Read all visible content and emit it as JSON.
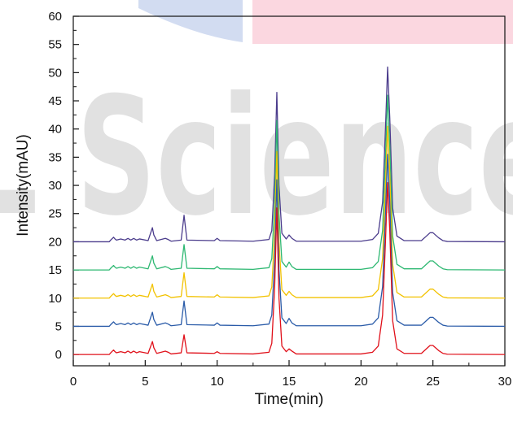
{
  "chart_data": {
    "type": "line",
    "title": "",
    "xlabel": "Time(min)",
    "ylabel": "Intensity(mAU)",
    "xlim": [
      0,
      30
    ],
    "ylim": [
      -2,
      60
    ],
    "xticks": [
      0,
      5,
      10,
      15,
      20,
      25,
      30
    ],
    "yticks": [
      0,
      5,
      10,
      15,
      20,
      25,
      30,
      35,
      40,
      45,
      50,
      55,
      60
    ],
    "grid": false,
    "legend": "none",
    "series": [
      {
        "color": "#e0101a",
        "baseline": 0,
        "x": [
          0.0,
          2.5,
          2.6,
          2.8,
          2.9,
          3.0,
          3.3,
          3.6,
          3.8,
          4.0,
          4.2,
          4.4,
          4.6,
          5.2,
          5.5,
          5.6,
          5.8,
          6.4,
          6.6,
          6.8,
          7.5,
          7.7,
          7.9,
          9.8,
          10.0,
          10.2,
          12.5,
          13.6,
          13.8,
          14.0,
          14.15,
          14.3,
          14.5,
          14.8,
          15.0,
          15.2,
          15.5,
          20.0,
          20.8,
          21.2,
          21.5,
          21.7,
          21.85,
          22.0,
          22.2,
          22.5,
          23.0,
          24.2,
          24.5,
          24.8,
          25.0,
          25.4,
          25.7,
          26.0,
          30.0
        ],
        "y": [
          0,
          0,
          0.3,
          0.8,
          0.5,
          0.3,
          0.5,
          0.3,
          0.6,
          0.3,
          0.6,
          0.3,
          0.5,
          0.2,
          2.3,
          1.2,
          0.2,
          0.6,
          0.4,
          0.1,
          0.3,
          3.5,
          0.3,
          0.2,
          0.5,
          0.2,
          0.1,
          0.4,
          2.0,
          12.0,
          26.0,
          10.0,
          1.5,
          0.5,
          1.0,
          0.6,
          0.1,
          0.1,
          0.4,
          1.5,
          7.0,
          20.0,
          30.5,
          22.0,
          6.0,
          1.0,
          0.2,
          0.2,
          0.9,
          1.6,
          1.6,
          0.7,
          0.2,
          0.05,
          0
        ]
      },
      {
        "color": "#2a5ba8",
        "baseline": 5,
        "x": [
          0.0,
          2.5,
          2.6,
          2.8,
          2.9,
          3.0,
          3.3,
          3.6,
          3.8,
          4.0,
          4.2,
          4.4,
          4.6,
          5.2,
          5.5,
          5.6,
          5.8,
          6.4,
          6.6,
          6.8,
          7.5,
          7.7,
          7.9,
          9.8,
          10.0,
          10.2,
          12.5,
          13.6,
          13.8,
          14.0,
          14.15,
          14.3,
          14.5,
          14.8,
          15.0,
          15.2,
          15.5,
          20.0,
          20.8,
          21.2,
          21.5,
          21.7,
          21.85,
          22.0,
          22.2,
          22.5,
          23.0,
          24.2,
          24.5,
          24.8,
          25.0,
          25.4,
          25.7,
          26.0,
          30.0
        ],
        "y": [
          5,
          5,
          5.3,
          5.8,
          5.5,
          5.3,
          5.5,
          5.3,
          5.6,
          5.3,
          5.6,
          5.3,
          5.5,
          5.2,
          7.5,
          6.2,
          5.2,
          5.6,
          5.4,
          5.1,
          5.3,
          9.5,
          5.3,
          5.2,
          5.6,
          5.2,
          5.1,
          5.4,
          7.0,
          17.0,
          31.0,
          15.0,
          6.5,
          5.5,
          6.4,
          5.6,
          5.1,
          5.1,
          5.4,
          6.5,
          12.0,
          25.0,
          35.5,
          27.0,
          11.0,
          6.0,
          5.2,
          5.2,
          5.9,
          6.6,
          6.6,
          5.7,
          5.2,
          5.05,
          5
        ]
      },
      {
        "color": "#f2c200",
        "baseline": 10,
        "x": [
          0.0,
          2.5,
          2.6,
          2.8,
          2.9,
          3.0,
          3.3,
          3.6,
          3.8,
          4.0,
          4.2,
          4.4,
          4.6,
          5.2,
          5.5,
          5.6,
          5.8,
          6.4,
          6.6,
          6.8,
          7.5,
          7.7,
          7.9,
          9.8,
          10.0,
          10.2,
          12.5,
          13.6,
          13.8,
          14.0,
          14.15,
          14.3,
          14.5,
          14.8,
          15.0,
          15.2,
          15.5,
          20.0,
          20.8,
          21.2,
          21.5,
          21.7,
          21.85,
          22.0,
          22.2,
          22.5,
          23.0,
          24.2,
          24.5,
          24.8,
          25.0,
          25.4,
          25.7,
          26.0,
          30.0
        ],
        "y": [
          10,
          10,
          10.3,
          10.8,
          10.5,
          10.3,
          10.5,
          10.3,
          10.6,
          10.3,
          10.6,
          10.3,
          10.5,
          10.2,
          12.5,
          11.2,
          10.2,
          10.6,
          10.4,
          10.1,
          10.3,
          14.5,
          10.3,
          10.2,
          10.6,
          10.2,
          10.1,
          10.4,
          12.0,
          22.0,
          36.0,
          20.0,
          11.5,
          10.5,
          11.2,
          10.6,
          10.1,
          10.1,
          10.4,
          11.5,
          17.0,
          30.0,
          40.5,
          32.0,
          16.0,
          11.0,
          10.2,
          10.2,
          10.9,
          11.6,
          11.6,
          10.7,
          10.2,
          10.05,
          10
        ]
      },
      {
        "color": "#2eb872",
        "baseline": 15,
        "x": [
          0.0,
          2.5,
          2.6,
          2.8,
          2.9,
          3.0,
          3.3,
          3.6,
          3.8,
          4.0,
          4.2,
          4.4,
          4.6,
          5.2,
          5.5,
          5.6,
          5.8,
          6.4,
          6.6,
          6.8,
          7.5,
          7.7,
          7.9,
          9.8,
          10.0,
          10.2,
          12.5,
          13.6,
          13.8,
          14.0,
          14.15,
          14.3,
          14.5,
          14.8,
          15.0,
          15.2,
          15.5,
          20.0,
          20.8,
          21.2,
          21.5,
          21.7,
          21.85,
          22.0,
          22.2,
          22.5,
          23.0,
          24.2,
          24.5,
          24.8,
          25.0,
          25.4,
          25.7,
          26.0,
          30.0
        ],
        "y": [
          15,
          15,
          15.3,
          15.8,
          15.5,
          15.3,
          15.5,
          15.3,
          15.6,
          15.3,
          15.6,
          15.3,
          15.5,
          15.2,
          17.5,
          16.2,
          15.2,
          15.6,
          15.4,
          15.1,
          15.3,
          19.5,
          15.3,
          15.2,
          15.6,
          15.2,
          15.1,
          15.4,
          17.0,
          27.0,
          41.5,
          25.0,
          16.5,
          15.5,
          16.4,
          15.6,
          15.1,
          15.1,
          15.4,
          16.5,
          22.0,
          35.0,
          46.0,
          37.0,
          21.0,
          16.0,
          15.2,
          15.2,
          15.9,
          16.6,
          16.6,
          15.7,
          15.2,
          15.05,
          15
        ]
      },
      {
        "color": "#4b3c8c",
        "baseline": 20,
        "x": [
          0.0,
          2.5,
          2.6,
          2.8,
          2.9,
          3.0,
          3.3,
          3.6,
          3.8,
          4.0,
          4.2,
          4.4,
          4.6,
          5.2,
          5.5,
          5.6,
          5.8,
          6.4,
          6.6,
          6.8,
          7.5,
          7.7,
          7.9,
          9.8,
          10.0,
          10.2,
          12.5,
          13.6,
          13.8,
          14.0,
          14.15,
          14.3,
          14.5,
          14.8,
          15.0,
          15.2,
          15.5,
          20.0,
          20.8,
          21.2,
          21.5,
          21.7,
          21.85,
          22.0,
          22.2,
          22.5,
          23.0,
          24.2,
          24.5,
          24.8,
          25.0,
          25.4,
          25.7,
          26.0,
          30.0
        ],
        "y": [
          20,
          20,
          20.3,
          20.8,
          20.5,
          20.3,
          20.5,
          20.3,
          20.6,
          20.3,
          20.6,
          20.3,
          20.5,
          20.2,
          22.5,
          21.2,
          20.2,
          20.6,
          20.4,
          20.1,
          20.3,
          24.7,
          20.3,
          20.2,
          20.6,
          20.2,
          20.1,
          20.4,
          22.0,
          32.0,
          46.5,
          30.0,
          21.5,
          20.5,
          21.2,
          20.6,
          20.1,
          20.1,
          20.4,
          21.5,
          27.0,
          40.0,
          51.0,
          42.0,
          26.0,
          21.0,
          20.2,
          20.2,
          20.9,
          21.6,
          21.6,
          20.7,
          20.2,
          20.05,
          20
        ]
      }
    ]
  },
  "watermark": {
    "text": "L Science",
    "colors": {
      "blue": "#c7d3ee",
      "pink": "#fbd7e0",
      "gray": "#c9c9c9"
    }
  }
}
